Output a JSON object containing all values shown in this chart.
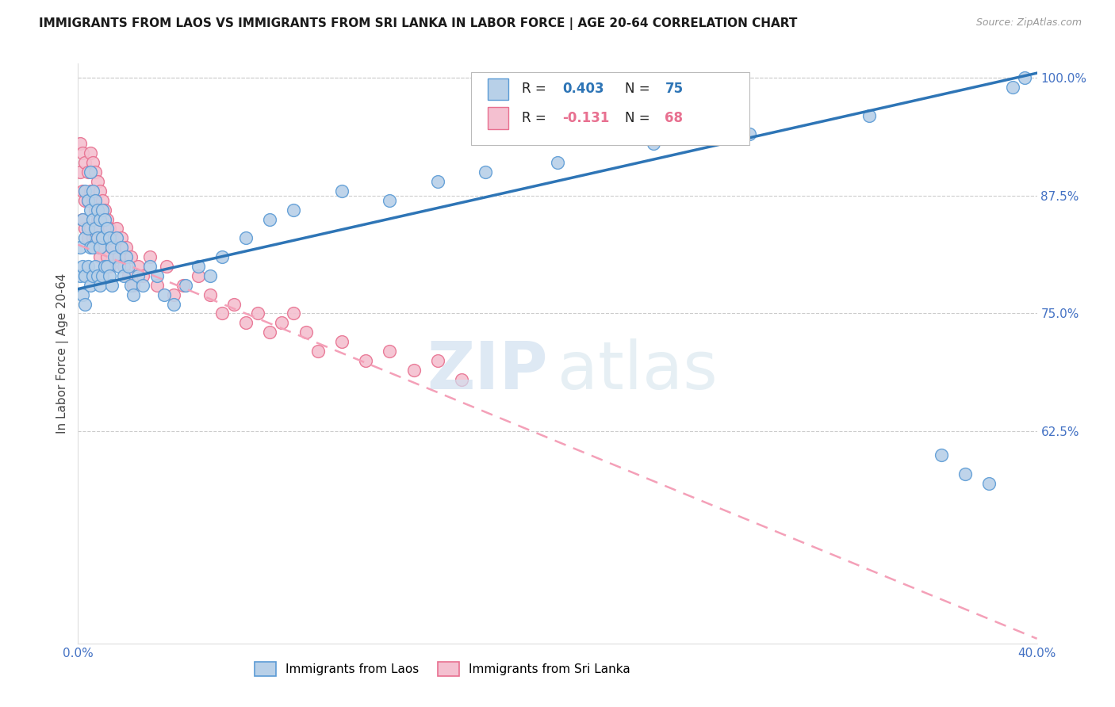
{
  "title": "IMMIGRANTS FROM LAOS VS IMMIGRANTS FROM SRI LANKA IN LABOR FORCE | AGE 20-64 CORRELATION CHART",
  "source": "Source: ZipAtlas.com",
  "ylabel": "In Labor Force | Age 20-64",
  "xlim": [
    0.0,
    0.4
  ],
  "ylim": [
    0.4,
    1.015
  ],
  "yticks": [
    0.625,
    0.75,
    0.875,
    1.0
  ],
  "yticklabels": [
    "62.5%",
    "75.0%",
    "87.5%",
    "100.0%"
  ],
  "xtick_left_label": "0.0%",
  "xtick_right_label": "40.0%",
  "ytick_color": "#4472c4",
  "xtick_color": "#4472c4",
  "laos_R": "0.403",
  "laos_N": "75",
  "srilanka_R": "-0.131",
  "srilanka_N": "68",
  "laos_color": "#b8d0e8",
  "laos_edge_color": "#5b9bd5",
  "srilanka_color": "#f4c0d0",
  "srilanka_edge_color": "#e87090",
  "trend_laos_color": "#2e75b6",
  "trend_srilanka_color": "#f4a0b8",
  "legend_label_laos": "Immigrants from Laos",
  "legend_label_srilanka": "Immigrants from Sri Lanka",
  "trend_laos_y0": 0.776,
  "trend_laos_y1": 1.005,
  "trend_srilanka_y0": 0.823,
  "trend_srilanka_y1": 0.405,
  "laos_x": [
    0.001,
    0.001,
    0.002,
    0.002,
    0.002,
    0.003,
    0.003,
    0.003,
    0.003,
    0.004,
    0.004,
    0.004,
    0.005,
    0.005,
    0.005,
    0.005,
    0.006,
    0.006,
    0.006,
    0.006,
    0.007,
    0.007,
    0.007,
    0.008,
    0.008,
    0.008,
    0.009,
    0.009,
    0.009,
    0.01,
    0.01,
    0.01,
    0.011,
    0.011,
    0.012,
    0.012,
    0.013,
    0.013,
    0.014,
    0.014,
    0.015,
    0.016,
    0.017,
    0.018,
    0.019,
    0.02,
    0.021,
    0.022,
    0.023,
    0.025,
    0.027,
    0.03,
    0.033,
    0.036,
    0.04,
    0.045,
    0.05,
    0.055,
    0.06,
    0.07,
    0.08,
    0.09,
    0.11,
    0.13,
    0.15,
    0.17,
    0.2,
    0.24,
    0.28,
    0.33,
    0.36,
    0.37,
    0.38,
    0.39,
    0.395
  ],
  "laos_y": [
    0.82,
    0.79,
    0.85,
    0.8,
    0.77,
    0.88,
    0.83,
    0.79,
    0.76,
    0.87,
    0.84,
    0.8,
    0.9,
    0.86,
    0.82,
    0.78,
    0.88,
    0.85,
    0.82,
    0.79,
    0.87,
    0.84,
    0.8,
    0.86,
    0.83,
    0.79,
    0.85,
    0.82,
    0.78,
    0.86,
    0.83,
    0.79,
    0.85,
    0.8,
    0.84,
    0.8,
    0.83,
    0.79,
    0.82,
    0.78,
    0.81,
    0.83,
    0.8,
    0.82,
    0.79,
    0.81,
    0.8,
    0.78,
    0.77,
    0.79,
    0.78,
    0.8,
    0.79,
    0.77,
    0.76,
    0.78,
    0.8,
    0.79,
    0.81,
    0.83,
    0.85,
    0.86,
    0.88,
    0.87,
    0.89,
    0.9,
    0.91,
    0.93,
    0.94,
    0.96,
    0.6,
    0.58,
    0.57,
    0.99,
    1.0
  ],
  "srilanka_x": [
    0.001,
    0.001,
    0.002,
    0.002,
    0.002,
    0.003,
    0.003,
    0.003,
    0.004,
    0.004,
    0.004,
    0.005,
    0.005,
    0.005,
    0.006,
    0.006,
    0.006,
    0.007,
    0.007,
    0.007,
    0.008,
    0.008,
    0.008,
    0.009,
    0.009,
    0.009,
    0.01,
    0.01,
    0.011,
    0.011,
    0.012,
    0.012,
    0.013,
    0.013,
    0.014,
    0.015,
    0.016,
    0.017,
    0.018,
    0.019,
    0.02,
    0.021,
    0.022,
    0.023,
    0.025,
    0.027,
    0.03,
    0.033,
    0.037,
    0.04,
    0.044,
    0.05,
    0.055,
    0.06,
    0.065,
    0.07,
    0.075,
    0.08,
    0.085,
    0.09,
    0.095,
    0.1,
    0.11,
    0.12,
    0.13,
    0.14,
    0.15,
    0.16
  ],
  "srilanka_y": [
    0.93,
    0.9,
    0.92,
    0.88,
    0.85,
    0.91,
    0.87,
    0.84,
    0.9,
    0.87,
    0.83,
    0.92,
    0.88,
    0.84,
    0.91,
    0.87,
    0.83,
    0.9,
    0.86,
    0.83,
    0.89,
    0.85,
    0.82,
    0.88,
    0.84,
    0.81,
    0.87,
    0.83,
    0.86,
    0.82,
    0.85,
    0.81,
    0.84,
    0.8,
    0.83,
    0.82,
    0.84,
    0.81,
    0.83,
    0.8,
    0.82,
    0.79,
    0.81,
    0.78,
    0.8,
    0.79,
    0.81,
    0.78,
    0.8,
    0.77,
    0.78,
    0.79,
    0.77,
    0.75,
    0.76,
    0.74,
    0.75,
    0.73,
    0.74,
    0.75,
    0.73,
    0.71,
    0.72,
    0.7,
    0.71,
    0.69,
    0.7,
    0.68
  ]
}
